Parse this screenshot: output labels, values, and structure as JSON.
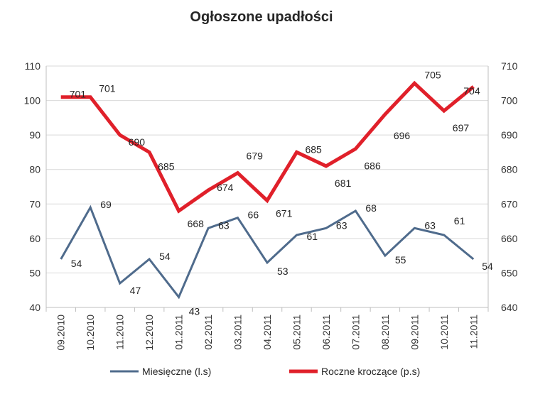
{
  "chart_data": {
    "type": "line",
    "title": "Ogłoszone upadłości",
    "xlabel": "",
    "ylabel": "",
    "categories": [
      "09.2010",
      "10.2010",
      "11.2010",
      "12.2010",
      "01.2011",
      "02.2011",
      "03.2011",
      "04.2011",
      "05.2011",
      "06.2011",
      "07.2011",
      "08.2011",
      "09.2011",
      "10.2011",
      "11.2011"
    ],
    "series": [
      {
        "name": "Miesięczne (l.s)",
        "axis": "left",
        "color": "#4f6b8c",
        "values": [
          54,
          69,
          47,
          54,
          43,
          63,
          66,
          53,
          61,
          63,
          68,
          55,
          63,
          61,
          54
        ],
        "labels": [
          "54",
          "69",
          "47",
          "54",
          "43",
          "63",
          "66",
          "53",
          "61",
          "63",
          "68",
          "55",
          "63",
          "61",
          "54"
        ]
      },
      {
        "name": "Roczne kroczące (p.s)",
        "axis": "right",
        "color": "#e0202a",
        "values": [
          701,
          701,
          690,
          685,
          668,
          674,
          679,
          671,
          685,
          681,
          686,
          696,
          705,
          697,
          704
        ],
        "labels": [
          "701",
          "701",
          "690",
          "685",
          "668",
          "674",
          "679",
          "671",
          "685",
          "681",
          "686",
          "696",
          "705",
          "697",
          "704"
        ]
      }
    ],
    "y_left": {
      "min": 40,
      "max": 110,
      "step": 10,
      "ticks": [
        "40",
        "50",
        "60",
        "70",
        "80",
        "90",
        "100",
        "110"
      ]
    },
    "y_right": {
      "min": 640,
      "max": 710,
      "step": 10,
      "ticks": [
        "640",
        "650",
        "660",
        "670",
        "680",
        "690",
        "700",
        "710"
      ]
    },
    "grid": "horizontal",
    "legend_position": "bottom"
  }
}
